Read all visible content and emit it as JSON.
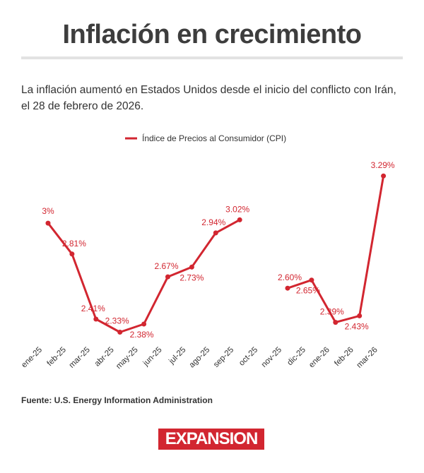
{
  "header": {
    "title": "Inflación en crecimiento",
    "subtitle": "La inflación aumentó en Estados Unidos desde el inicio del conflicto con Irán, el 28 de febrero de 2026."
  },
  "footer": {
    "source": "Fuente: U.S. Energy Information Administration",
    "logo_text": "EXPANSION"
  },
  "colors": {
    "series": "#d22630",
    "text": "#333333"
  },
  "chart_data": {
    "type": "line",
    "categories": [
      "ene-25",
      "feb-25",
      "mar-25",
      "abr-25",
      "may-25",
      "jun-25",
      "jul-25",
      "ago-25",
      "sep-25",
      "oct-25",
      "nov-25",
      "dic-25",
      "ene-26",
      "feb-26",
      "mar-26"
    ],
    "series": [
      {
        "name": "Índice de Precios al Consumidor (CPI)",
        "values": [
          3.0,
          2.81,
          2.41,
          2.33,
          2.38,
          2.67,
          2.73,
          2.94,
          3.02,
          null,
          2.6,
          2.65,
          2.39,
          2.43,
          3.29
        ],
        "labels": [
          "3%",
          "2.81%",
          "2.41%",
          "2.33%",
          "2.38%",
          "2.67%",
          "2.73%",
          "2.94%",
          "3.02%",
          "",
          "2.60%",
          "2.65%",
          "2.39%",
          "2.43%",
          "3.29%"
        ]
      }
    ],
    "legend": "top-center",
    "grid": false,
    "ylim": [
      2.28,
      3.33
    ]
  }
}
